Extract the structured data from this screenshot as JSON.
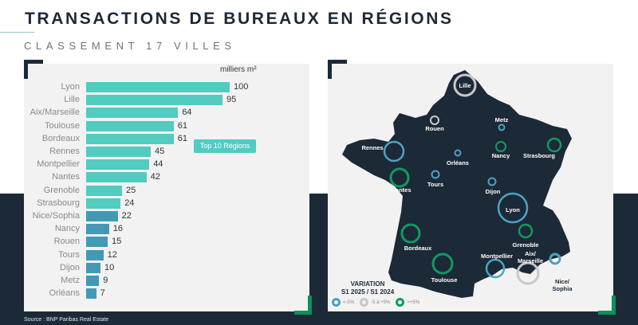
{
  "header": {
    "title": "TRANSACTIONS DE BUREAUX EN RÉGIONS",
    "subtitle": "CLASSEMENT 17 VILLES"
  },
  "colors": {
    "navy": "#1c2937",
    "teal_bar": "#52cbc1",
    "blue_bar": "#4299b5",
    "green": "#0e8f5a",
    "ring_blue": "#4ba3c4",
    "ring_grey": "#c8c8c8",
    "ring_green": "#119a5f",
    "panel_bg": "#f2f2f2"
  },
  "chart_data": [
    {
      "type": "bar",
      "orientation": "horizontal",
      "title": "CLASSEMENT 17 VILLES",
      "unit_label": "milliers m²",
      "categories": [
        "Lyon",
        "Lille",
        "Aix/Marseille",
        "Toulouse",
        "Bordeaux",
        "Rennes",
        "Montpellier",
        "Nantes",
        "Grenoble",
        "Strasbourg",
        "Nice/Sophia",
        "Nancy",
        "Rouen",
        "Tours",
        "Dijon",
        "Metz",
        "Orléans"
      ],
      "values": [
        100,
        95,
        64,
        61,
        61,
        45,
        44,
        42,
        25,
        24,
        22,
        16,
        15,
        12,
        10,
        9,
        7
      ],
      "highlight": {
        "label": "Top 10 Régions",
        "indices": [
          0,
          1,
          2,
          3,
          4,
          5,
          6,
          7,
          8,
          9
        ],
        "color": "#52cbc1",
        "other_color": "#4299b5"
      },
      "grid": false,
      "xlim": [
        0,
        100
      ]
    },
    {
      "type": "map-bubble",
      "title": "VARIATION S1 2025 / S1 2024",
      "legend": [
        {
          "label": "<-5%",
          "color": "#4ba3c4"
        },
        {
          "label": "-5 à +5%",
          "color": "#c8c8c8"
        },
        {
          "label": ">+5%",
          "color": "#119a5f"
        }
      ],
      "cities": [
        {
          "name": "Lille",
          "variation": "-5 à +5%"
        },
        {
          "name": "Rouen",
          "variation": "-5 à +5%"
        },
        {
          "name": "Metz",
          "variation": "<-5%"
        },
        {
          "name": "Rennes",
          "variation": "<-5%"
        },
        {
          "name": "Orléans",
          "variation": "<-5%"
        },
        {
          "name": "Nancy",
          "variation": ">+5%"
        },
        {
          "name": "Strasbourg",
          "variation": ">+5%"
        },
        {
          "name": "Nantes",
          "variation": ">+5%"
        },
        {
          "name": "Tours",
          "variation": "<-5%"
        },
        {
          "name": "Dijon",
          "variation": "<-5%"
        },
        {
          "name": "Lyon",
          "variation": "<-5%"
        },
        {
          "name": "Grenoble",
          "variation": ">+5%"
        },
        {
          "name": "Bordeaux",
          "variation": ">+5%"
        },
        {
          "name": "Toulouse",
          "variation": ">+5%"
        },
        {
          "name": "Montpellier",
          "variation": "<-5%"
        },
        {
          "name": "Aix/Marseille",
          "variation": "-5 à +5%"
        },
        {
          "name": "Nice/Sophia",
          "variation": "<-5%"
        }
      ]
    }
  ],
  "bars": [
    {
      "label": "Lyon",
      "value": "100",
      "v": 100,
      "color": "#52cbc1"
    },
    {
      "label": "Lille",
      "value": "95",
      "v": 95,
      "color": "#52cbc1"
    },
    {
      "label": "Aix/Marseille",
      "value": "64",
      "v": 64,
      "color": "#52cbc1"
    },
    {
      "label": "Toulouse",
      "value": "61",
      "v": 61,
      "color": "#52cbc1"
    },
    {
      "label": "Bordeaux",
      "value": "61",
      "v": 61,
      "color": "#52cbc1"
    },
    {
      "label": "Rennes",
      "value": "45",
      "v": 45,
      "color": "#52cbc1"
    },
    {
      "label": "Montpellier",
      "value": "44",
      "v": 44,
      "color": "#52cbc1"
    },
    {
      "label": "Nantes",
      "value": "42",
      "v": 42,
      "color": "#52cbc1"
    },
    {
      "label": "Grenoble",
      "value": "25",
      "v": 25,
      "color": "#52cbc1"
    },
    {
      "label": "Strasbourg",
      "value": "24",
      "v": 24,
      "color": "#52cbc1"
    },
    {
      "label": "Nice/Sophia",
      "value": "22",
      "v": 22,
      "color": "#4299b5"
    },
    {
      "label": "Nancy",
      "value": "16",
      "v": 16,
      "color": "#4299b5"
    },
    {
      "label": "Rouen",
      "value": "15",
      "v": 15,
      "color": "#4299b5"
    },
    {
      "label": "Tours",
      "value": "12",
      "v": 12,
      "color": "#4299b5"
    },
    {
      "label": "Dijon",
      "value": "10",
      "v": 10,
      "color": "#4299b5"
    },
    {
      "label": "Metz",
      "value": "9",
      "v": 9,
      "color": "#4299b5"
    },
    {
      "label": "Orléans",
      "value": "7",
      "v": 7,
      "color": "#4299b5"
    }
  ],
  "chart": {
    "unit": "milliers m²",
    "badge": "Top 10 Régions"
  },
  "map": {
    "labels": {
      "lille": "Lille",
      "rouen": "Rouen",
      "metz": "Metz",
      "rennes": "Rennes",
      "orleans": "Orléans",
      "nancy": "Nancy",
      "strasbourg": "Strasbourg",
      "nantes": "Nantes",
      "tours": "Tours",
      "dijon": "Dijon",
      "lyon": "Lyon",
      "grenoble": "Grenoble",
      "bordeaux": "Bordeaux",
      "toulouse": "Toulouse",
      "montpellier": "Montpellier",
      "aix1": "Aix/",
      "aix2": "Marseille",
      "nice1": "Nice/",
      "nice2": "Sophia"
    },
    "legend": {
      "title1": "VARIATION",
      "title2": "S1 2025 / S1 2024",
      "item1": "<-5%",
      "item2": "-5 à +5%",
      "item3": ">+5%"
    }
  },
  "footer": {
    "source": "Source : BNP Paribas Real Estate"
  }
}
